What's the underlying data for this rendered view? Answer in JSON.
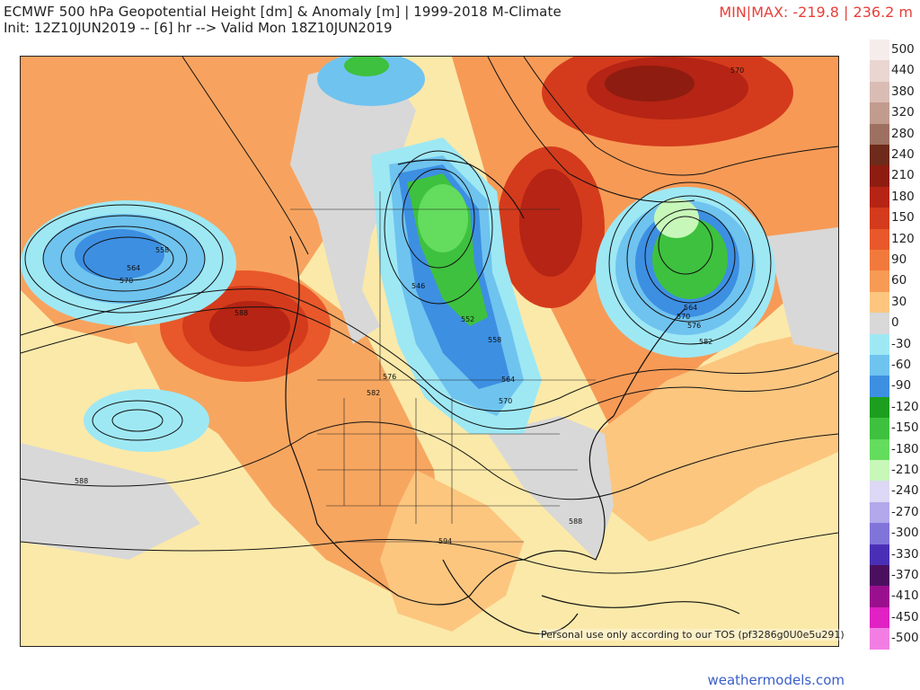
{
  "header": {
    "title": "ECMWF 500 hPa Geopotential Height [dm] & Anomaly [m] | 1999-2018 M-Climate",
    "init": "Init: 12Z10JUN2019 -- [6] hr --> Valid Mon 18Z10JUN2019",
    "minmax": "MIN|MAX: -219.8 | 236.2 m"
  },
  "map": {
    "disclaimer": "Personal use only according to our TOS (pf3286g0U0e5u291)",
    "contour_labels": [
      "570",
      "558",
      "564",
      "570",
      "588",
      "588",
      "546",
      "552",
      "558",
      "564",
      "570",
      "576",
      "582",
      "564",
      "570",
      "576",
      "582",
      "588",
      "594"
    ]
  },
  "legend": {
    "entries": [
      {
        "label": "500",
        "color": "#f7ecec"
      },
      {
        "label": "440",
        "color": "#e9d6d0"
      },
      {
        "label": "380",
        "color": "#d9bdb4"
      },
      {
        "label": "320",
        "color": "#c19b8e"
      },
      {
        "label": "280",
        "color": "#9e7062"
      },
      {
        "label": "240",
        "color": "#6e2a1a"
      },
      {
        "label": "210",
        "color": "#8e1c10"
      },
      {
        "label": "180",
        "color": "#b52414"
      },
      {
        "label": "150",
        "color": "#d43b1c"
      },
      {
        "label": "120",
        "color": "#e8582a"
      },
      {
        "label": "90",
        "color": "#f2793c"
      },
      {
        "label": "60",
        "color": "#f79a56"
      },
      {
        "label": "30",
        "color": "#fcc67f"
      },
      {
        "label": "0",
        "color": "#d8d8d8"
      },
      {
        "label": "-30",
        "color": "#9ee8f4"
      },
      {
        "label": "-60",
        "color": "#6fc3ef"
      },
      {
        "label": "-90",
        "color": "#3d8fe2"
      },
      {
        "label": "-120",
        "color": "#1e9e1e"
      },
      {
        "label": "-150",
        "color": "#3ec13e"
      },
      {
        "label": "-180",
        "color": "#64dc5e"
      },
      {
        "label": "-210",
        "color": "#c7f7b9"
      },
      {
        "label": "-240",
        "color": "#dcd8f5"
      },
      {
        "label": "-270",
        "color": "#b2a8ea"
      },
      {
        "label": "-300",
        "color": "#8174d8"
      },
      {
        "label": "-330",
        "color": "#4a2fb6"
      },
      {
        "label": "-370",
        "color": "#4b0f5f"
      },
      {
        "label": "-410",
        "color": "#9a0f8e"
      },
      {
        "label": "-450",
        "color": "#e021c4"
      },
      {
        "label": "-500",
        "color": "#f27ee3"
      }
    ]
  },
  "footer": {
    "brand": "weathermodels.com"
  }
}
